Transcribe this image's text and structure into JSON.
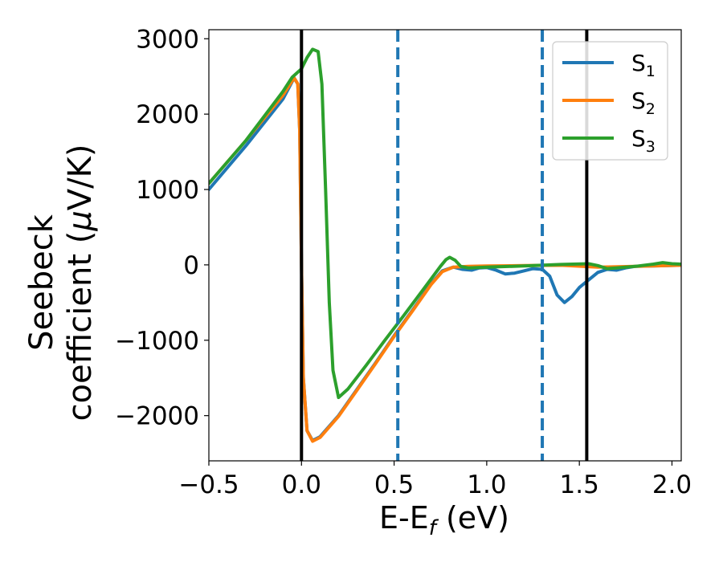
{
  "chart_data": {
    "type": "line",
    "xlabel": "E-E",
    "xlabel_sub": "f",
    "xlabel_unit": " (eV)",
    "ylabel_line1": "Seebeck",
    "ylabel_line2_pre": "coefficient  (",
    "ylabel_mu": "μ",
    "ylabel_line2_post": "V/K)",
    "xlim": [
      -0.5,
      2.05
    ],
    "ylim": [
      -2600,
      3120
    ],
    "xticks": [
      -0.5,
      0.0,
      0.5,
      1.0,
      1.5,
      2.0
    ],
    "xtick_labels": [
      "−0.5",
      "0.0",
      "0.5",
      "1.0",
      "1.5",
      "2.0"
    ],
    "yticks": [
      -2000,
      -1000,
      0,
      1000,
      2000,
      3000
    ],
    "ytick_labels": [
      "−2000",
      "−1000",
      "0",
      "1000",
      "2000",
      "3000"
    ],
    "grid": false,
    "legend_position": "top-right",
    "vlines": [
      {
        "x": 0.0,
        "style": "solid",
        "color": "#000000"
      },
      {
        "x": 0.52,
        "style": "dashed",
        "color": "#1f77b4"
      },
      {
        "x": 1.3,
        "style": "dashed",
        "color": "#1f77b4"
      },
      {
        "x": 1.54,
        "style": "solid",
        "color": "#000000"
      }
    ],
    "series": [
      {
        "name": "S",
        "sub": "1",
        "color": "#1f77b4",
        "points": [
          [
            -0.5,
            1000
          ],
          [
            -0.3,
            1580
          ],
          [
            -0.1,
            2200
          ],
          [
            -0.04,
            2480
          ],
          [
            -0.02,
            2400
          ],
          [
            -0.01,
            1800
          ],
          [
            0.0,
            0
          ],
          [
            0.01,
            -1500
          ],
          [
            0.03,
            -2200
          ],
          [
            0.06,
            -2330
          ],
          [
            0.1,
            -2280
          ],
          [
            0.2,
            -2000
          ],
          [
            0.3,
            -1650
          ],
          [
            0.4,
            -1300
          ],
          [
            0.5,
            -940
          ],
          [
            0.6,
            -600
          ],
          [
            0.7,
            -250
          ],
          [
            0.76,
            -80
          ],
          [
            0.82,
            -30
          ],
          [
            0.87,
            -60
          ],
          [
            0.92,
            -70
          ],
          [
            0.96,
            -40
          ],
          [
            1.0,
            -35
          ],
          [
            1.05,
            -70
          ],
          [
            1.1,
            -120
          ],
          [
            1.15,
            -110
          ],
          [
            1.2,
            -80
          ],
          [
            1.25,
            -50
          ],
          [
            1.3,
            -60
          ],
          [
            1.34,
            -150
          ],
          [
            1.38,
            -400
          ],
          [
            1.42,
            -500
          ],
          [
            1.46,
            -420
          ],
          [
            1.5,
            -300
          ],
          [
            1.55,
            -200
          ],
          [
            1.6,
            -100
          ],
          [
            1.65,
            -60
          ],
          [
            1.7,
            -70
          ],
          [
            1.75,
            -40
          ],
          [
            1.8,
            -20
          ],
          [
            1.9,
            -15
          ],
          [
            2.05,
            -5
          ]
        ]
      },
      {
        "name": "S",
        "sub": "2",
        "color": "#ff7f0e",
        "points": [
          [
            -0.5,
            1080
          ],
          [
            -0.3,
            1650
          ],
          [
            -0.1,
            2250
          ],
          [
            -0.04,
            2480
          ],
          [
            -0.02,
            2400
          ],
          [
            -0.01,
            1800
          ],
          [
            0.0,
            0
          ],
          [
            0.01,
            -1500
          ],
          [
            0.03,
            -2200
          ],
          [
            0.06,
            -2340
          ],
          [
            0.1,
            -2290
          ],
          [
            0.2,
            -2010
          ],
          [
            0.3,
            -1660
          ],
          [
            0.4,
            -1310
          ],
          [
            0.5,
            -950
          ],
          [
            0.6,
            -610
          ],
          [
            0.7,
            -260
          ],
          [
            0.76,
            -90
          ],
          [
            0.82,
            -30
          ],
          [
            0.9,
            -20
          ],
          [
            1.0,
            -15
          ],
          [
            1.2,
            -10
          ],
          [
            1.4,
            -5
          ],
          [
            1.6,
            -30
          ],
          [
            1.8,
            -20
          ],
          [
            2.05,
            -5
          ]
        ]
      },
      {
        "name": "S",
        "sub": "3",
        "color": "#2ca02c",
        "points": [
          [
            -0.5,
            1080
          ],
          [
            -0.3,
            1650
          ],
          [
            -0.1,
            2300
          ],
          [
            -0.05,
            2490
          ],
          [
            0.0,
            2600
          ],
          [
            0.03,
            2750
          ],
          [
            0.06,
            2860
          ],
          [
            0.09,
            2830
          ],
          [
            0.11,
            2400
          ],
          [
            0.13,
            1000
          ],
          [
            0.15,
            -500
          ],
          [
            0.17,
            -1400
          ],
          [
            0.2,
            -1760
          ],
          [
            0.25,
            -1650
          ],
          [
            0.35,
            -1330
          ],
          [
            0.45,
            -1000
          ],
          [
            0.55,
            -680
          ],
          [
            0.65,
            -350
          ],
          [
            0.75,
            -20
          ],
          [
            0.78,
            70
          ],
          [
            0.8,
            100
          ],
          [
            0.83,
            60
          ],
          [
            0.86,
            -20
          ],
          [
            0.9,
            -40
          ],
          [
            1.0,
            -30
          ],
          [
            1.2,
            -15
          ],
          [
            1.4,
            5
          ],
          [
            1.55,
            15
          ],
          [
            1.6,
            -10
          ],
          [
            1.65,
            -50
          ],
          [
            1.7,
            -40
          ],
          [
            1.8,
            -20
          ],
          [
            1.9,
            10
          ],
          [
            1.95,
            30
          ],
          [
            2.0,
            15
          ],
          [
            2.05,
            10
          ]
        ]
      }
    ]
  }
}
